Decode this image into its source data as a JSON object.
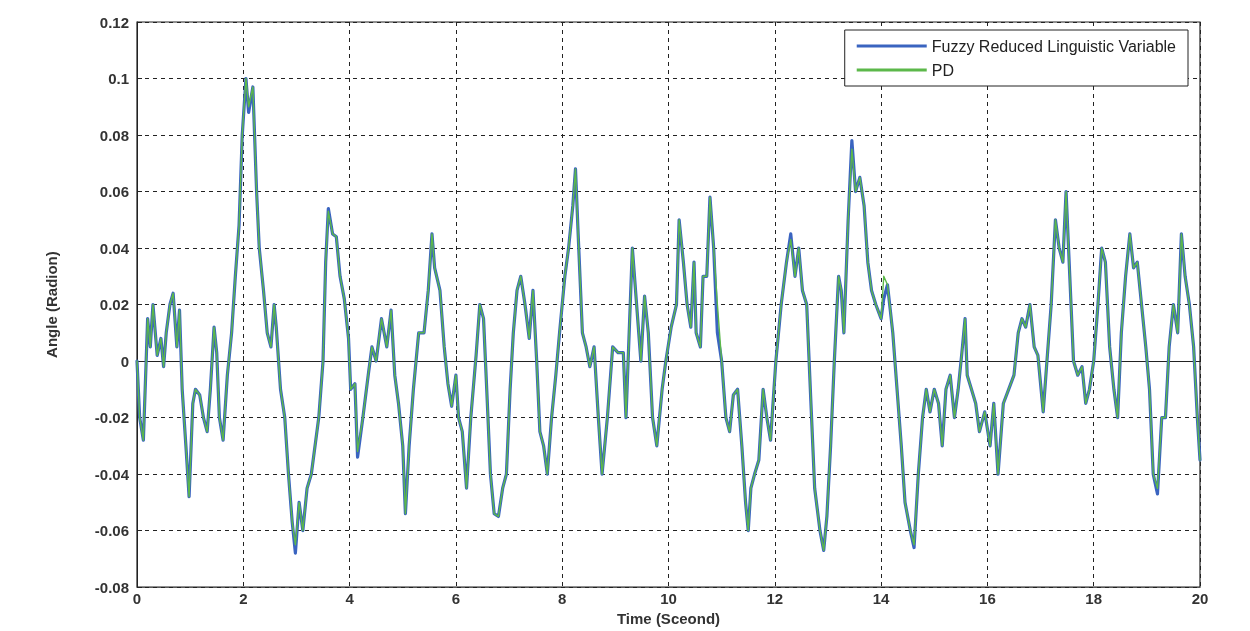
{
  "chart_data": {
    "type": "line",
    "xlabel": "Time (Sceond)",
    "ylabel": "Angle (Radion)",
    "x": [
      0,
      0.05,
      0.12,
      0.2,
      0.25,
      0.3,
      0.38,
      0.45,
      0.5,
      0.55,
      0.62,
      0.68,
      0.75,
      0.8,
      0.85,
      0.92,
      0.98,
      1.05,
      1.1,
      1.18,
      1.25,
      1.32,
      1.38,
      1.45,
      1.5,
      1.55,
      1.62,
      1.7,
      1.78,
      1.85,
      1.92,
      1.98,
      2.05,
      2.1,
      2.18,
      2.25,
      2.3,
      2.38,
      2.45,
      2.52,
      2.58,
      2.62,
      2.7,
      2.78,
      2.85,
      2.92,
      2.98,
      3.05,
      3.12,
      3.2,
      3.28,
      3.35,
      3.42,
      3.5,
      3.55,
      3.6,
      3.68,
      3.75,
      3.82,
      3.9,
      3.98,
      4.02,
      4.1,
      4.15,
      4.25,
      4.35,
      4.42,
      4.5,
      4.6,
      4.7,
      4.78,
      4.85,
      4.92,
      5.0,
      5.05,
      5.12,
      5.2,
      5.3,
      5.4,
      5.48,
      5.55,
      5.6,
      5.7,
      5.78,
      5.85,
      5.92,
      6.0,
      6.05,
      6.12,
      6.2,
      6.28,
      6.38,
      6.45,
      6.52,
      6.58,
      6.65,
      6.72,
      6.8,
      6.88,
      6.95,
      7.02,
      7.08,
      7.15,
      7.22,
      7.3,
      7.38,
      7.45,
      7.52,
      7.58,
      7.65,
      7.72,
      7.8,
      7.88,
      7.95,
      8.05,
      8.12,
      8.2,
      8.25,
      8.3,
      8.38,
      8.45,
      8.52,
      8.6,
      8.68,
      8.75,
      8.85,
      8.95,
      9.05,
      9.15,
      9.2,
      9.28,
      9.32,
      9.4,
      9.48,
      9.55,
      9.62,
      9.7,
      9.78,
      9.88,
      9.95,
      10.05,
      10.15,
      10.2,
      10.28,
      10.35,
      10.42,
      10.48,
      10.52,
      10.6,
      10.65,
      10.72,
      10.78,
      10.85,
      10.92,
      11.0,
      11.08,
      11.15,
      11.22,
      11.3,
      11.38,
      11.45,
      11.5,
      11.55,
      11.62,
      11.7,
      11.78,
      11.85,
      11.92,
      12.02,
      12.12,
      12.22,
      12.3,
      12.38,
      12.45,
      12.52,
      12.6,
      12.68,
      12.75,
      12.85,
      12.92,
      12.98,
      13.05,
      13.12,
      13.2,
      13.25,
      13.3,
      13.38,
      13.45,
      13.52,
      13.6,
      13.68,
      13.75,
      13.82,
      13.9,
      14.0,
      14.05,
      14.12,
      14.22,
      14.3,
      14.38,
      14.45,
      14.55,
      14.62,
      14.7,
      14.78,
      14.85,
      14.92,
      15.0,
      15.08,
      15.15,
      15.22,
      15.3,
      15.38,
      15.45,
      15.52,
      15.58,
      15.62,
      15.7,
      15.78,
      15.85,
      15.95,
      16.05,
      16.12,
      16.2,
      16.3,
      16.4,
      16.5,
      16.58,
      16.65,
      16.72,
      16.8,
      16.88,
      16.95,
      17.05,
      17.12,
      17.2,
      17.28,
      17.35,
      17.42,
      17.48,
      17.55,
      17.62,
      17.7,
      17.78,
      17.85,
      17.92,
      18.0,
      18.08,
      18.15,
      18.22,
      18.3,
      18.38,
      18.45,
      18.52,
      18.6,
      18.68,
      18.75,
      18.82,
      18.9,
      18.98,
      19.05,
      19.12,
      19.2,
      19.28,
      19.35,
      19.42,
      19.5,
      19.58,
      19.65,
      19.72,
      19.8,
      19.88,
      19.95,
      20.0
    ],
    "series": [
      {
        "name": "Fuzzy Reduced Linguistic Variable",
        "color": "#3a64c0",
        "values": [
          0,
          -0.02,
          -0.028,
          0.015,
          0.005,
          0.02,
          0.002,
          0.008,
          -0.002,
          0.01,
          0.02,
          0.024,
          0.005,
          0.018,
          -0.01,
          -0.03,
          -0.048,
          -0.015,
          -0.01,
          -0.012,
          -0.02,
          -0.025,
          -0.01,
          0.012,
          0.003,
          -0.02,
          -0.028,
          -0.005,
          0.01,
          0.03,
          0.048,
          0.08,
          0.1,
          0.088,
          0.097,
          0.06,
          0.04,
          0.025,
          0.01,
          0.005,
          0.02,
          0.012,
          -0.01,
          -0.02,
          -0.04,
          -0.057,
          -0.068,
          -0.05,
          -0.06,
          -0.045,
          -0.04,
          -0.03,
          -0.02,
          0.0,
          0.035,
          0.054,
          0.045,
          0.044,
          0.03,
          0.022,
          0.008,
          -0.01,
          -0.008,
          -0.034,
          -0.02,
          -0.005,
          0.005,
          0.0,
          0.015,
          0.005,
          0.018,
          -0.005,
          -0.015,
          -0.03,
          -0.054,
          -0.03,
          -0.01,
          0.01,
          0.01,
          0.025,
          0.045,
          0.033,
          0.025,
          0.005,
          -0.008,
          -0.016,
          -0.005,
          -0.02,
          -0.025,
          -0.045,
          -0.02,
          0.002,
          0.02,
          0.015,
          -0.01,
          -0.04,
          -0.054,
          -0.055,
          -0.045,
          -0.04,
          -0.01,
          0.01,
          0.025,
          0.03,
          0.02,
          0.008,
          0.025,
          0.0,
          -0.025,
          -0.03,
          -0.04,
          -0.02,
          -0.005,
          0.01,
          0.03,
          0.04,
          0.055,
          0.068,
          0.045,
          0.01,
          0.005,
          -0.002,
          0.005,
          -0.02,
          -0.04,
          -0.02,
          0.005,
          0.003,
          0.003,
          -0.02,
          0.02,
          0.04,
          0.02,
          0.0,
          0.023,
          0.01,
          -0.02,
          -0.03,
          -0.01,
          0.0,
          0.012,
          0.02,
          0.05,
          0.035,
          0.02,
          0.012,
          0.035,
          0.01,
          0.005,
          0.03,
          0.03,
          0.058,
          0.04,
          0.01,
          0.0,
          -0.02,
          -0.025,
          -0.012,
          -0.01,
          -0.03,
          -0.05,
          -0.06,
          -0.045,
          -0.04,
          -0.035,
          -0.01,
          -0.02,
          -0.028,
          0.0,
          0.02,
          0.035,
          0.045,
          0.03,
          0.04,
          0.025,
          0.02,
          -0.015,
          -0.045,
          -0.06,
          -0.067,
          -0.055,
          -0.03,
          0.0,
          0.03,
          0.025,
          0.01,
          0.05,
          0.078,
          0.06,
          0.065,
          0.055,
          0.035,
          0.025,
          0.02,
          0.015,
          0.022,
          0.027,
          0.01,
          -0.01,
          -0.03,
          -0.05,
          -0.06,
          -0.066,
          -0.04,
          -0.02,
          -0.01,
          -0.018,
          -0.01,
          -0.015,
          -0.03,
          -0.01,
          -0.005,
          -0.02,
          -0.01,
          0.003,
          0.015,
          -0.005,
          -0.01,
          -0.015,
          -0.025,
          -0.018,
          -0.03,
          -0.015,
          -0.04,
          -0.015,
          -0.01,
          -0.005,
          0.01,
          0.015,
          0.012,
          0.02,
          0.005,
          0.002,
          -0.018,
          0.0,
          0.02,
          0.05,
          0.04,
          0.035,
          0.06,
          0.03,
          0.0,
          -0.005,
          -0.002,
          -0.015,
          -0.01,
          0.0,
          0.02,
          0.04,
          0.035,
          0.005,
          -0.01,
          -0.02,
          0.01,
          0.03,
          0.045,
          0.033,
          0.035,
          0.02,
          0.005,
          -0.01,
          -0.04,
          -0.047,
          -0.02,
          -0.02,
          0.005,
          0.02,
          0.01,
          0.045,
          0.03,
          0.02,
          0.005,
          -0.02,
          -0.035
        ]
      },
      {
        "name": "PD",
        "color": "#5cb84a",
        "values": [
          0,
          -0.02,
          -0.028,
          0.015,
          0.005,
          0.02,
          0.002,
          0.008,
          -0.002,
          0.01,
          0.02,
          0.024,
          0.005,
          0.018,
          -0.01,
          -0.03,
          -0.048,
          -0.015,
          -0.01,
          -0.012,
          -0.02,
          -0.025,
          -0.01,
          0.012,
          0.003,
          -0.02,
          -0.028,
          -0.005,
          0.01,
          0.03,
          0.048,
          0.08,
          0.1,
          0.09,
          0.097,
          0.06,
          0.04,
          0.025,
          0.01,
          0.005,
          0.02,
          0.012,
          -0.01,
          -0.02,
          -0.04,
          -0.057,
          -0.065,
          -0.05,
          -0.06,
          -0.045,
          -0.04,
          -0.03,
          -0.02,
          0.0,
          0.035,
          0.053,
          0.045,
          0.044,
          0.03,
          0.022,
          0.008,
          -0.01,
          -0.008,
          -0.032,
          -0.02,
          -0.005,
          0.005,
          0.0,
          0.015,
          0.005,
          0.018,
          -0.005,
          -0.015,
          -0.03,
          -0.054,
          -0.03,
          -0.01,
          0.01,
          0.01,
          0.025,
          0.045,
          0.033,
          0.025,
          0.005,
          -0.008,
          -0.016,
          -0.005,
          -0.02,
          -0.025,
          -0.045,
          -0.02,
          0.002,
          0.02,
          0.015,
          -0.01,
          -0.04,
          -0.054,
          -0.055,
          -0.045,
          -0.04,
          -0.01,
          0.01,
          0.025,
          0.03,
          0.02,
          0.008,
          0.025,
          0.0,
          -0.025,
          -0.03,
          -0.04,
          -0.02,
          -0.005,
          0.01,
          0.03,
          0.04,
          0.055,
          0.068,
          0.045,
          0.01,
          0.005,
          -0.002,
          0.005,
          -0.02,
          -0.04,
          -0.02,
          0.005,
          0.003,
          0.003,
          -0.02,
          0.02,
          0.04,
          0.02,
          0.0,
          0.023,
          0.01,
          -0.02,
          -0.03,
          -0.01,
          0.0,
          0.012,
          0.02,
          0.05,
          0.035,
          0.02,
          0.012,
          0.035,
          0.01,
          0.005,
          0.03,
          0.03,
          0.058,
          0.04,
          0.02,
          0.0,
          -0.02,
          -0.025,
          -0.012,
          -0.01,
          -0.03,
          -0.05,
          -0.06,
          -0.045,
          -0.04,
          -0.035,
          -0.01,
          -0.02,
          -0.028,
          0.0,
          0.02,
          0.035,
          0.043,
          0.03,
          0.04,
          0.025,
          0.02,
          -0.015,
          -0.045,
          -0.06,
          -0.067,
          -0.055,
          -0.03,
          0.0,
          0.03,
          0.025,
          0.01,
          0.05,
          0.075,
          0.06,
          0.065,
          0.055,
          0.035,
          0.025,
          0.02,
          0.015,
          0.03,
          0.027,
          0.01,
          -0.01,
          -0.03,
          -0.05,
          -0.06,
          -0.065,
          -0.04,
          -0.02,
          -0.01,
          -0.018,
          -0.01,
          -0.015,
          -0.03,
          -0.01,
          -0.005,
          -0.02,
          -0.01,
          0.003,
          0.015,
          -0.005,
          -0.01,
          -0.015,
          -0.025,
          -0.018,
          -0.03,
          -0.015,
          -0.04,
          -0.015,
          -0.01,
          -0.005,
          0.01,
          0.015,
          0.012,
          0.02,
          0.005,
          0.002,
          -0.018,
          0.0,
          0.02,
          0.05,
          0.04,
          0.035,
          0.06,
          0.03,
          0.0,
          -0.005,
          -0.002,
          -0.015,
          -0.01,
          0.0,
          0.02,
          0.04,
          0.035,
          0.005,
          -0.01,
          -0.02,
          0.01,
          0.03,
          0.045,
          0.033,
          0.035,
          0.02,
          0.005,
          -0.01,
          -0.04,
          -0.045,
          -0.02,
          -0.02,
          0.005,
          0.02,
          0.01,
          0.045,
          0.03,
          0.02,
          0.005,
          -0.02,
          -0.035
        ]
      }
    ],
    "xlim": [
      0,
      20
    ],
    "xticks": [
      0,
      2,
      4,
      6,
      8,
      10,
      12,
      14,
      16,
      18,
      20
    ],
    "ylim": [
      -0.08,
      0.12
    ],
    "yticks": [
      -0.08,
      -0.06,
      -0.04,
      -0.02,
      0,
      0.02,
      0.04,
      0.06,
      0.08,
      0.1,
      0.12
    ],
    "grid": true,
    "legend": "top right",
    "marker": "none",
    "line_style": "solid"
  }
}
